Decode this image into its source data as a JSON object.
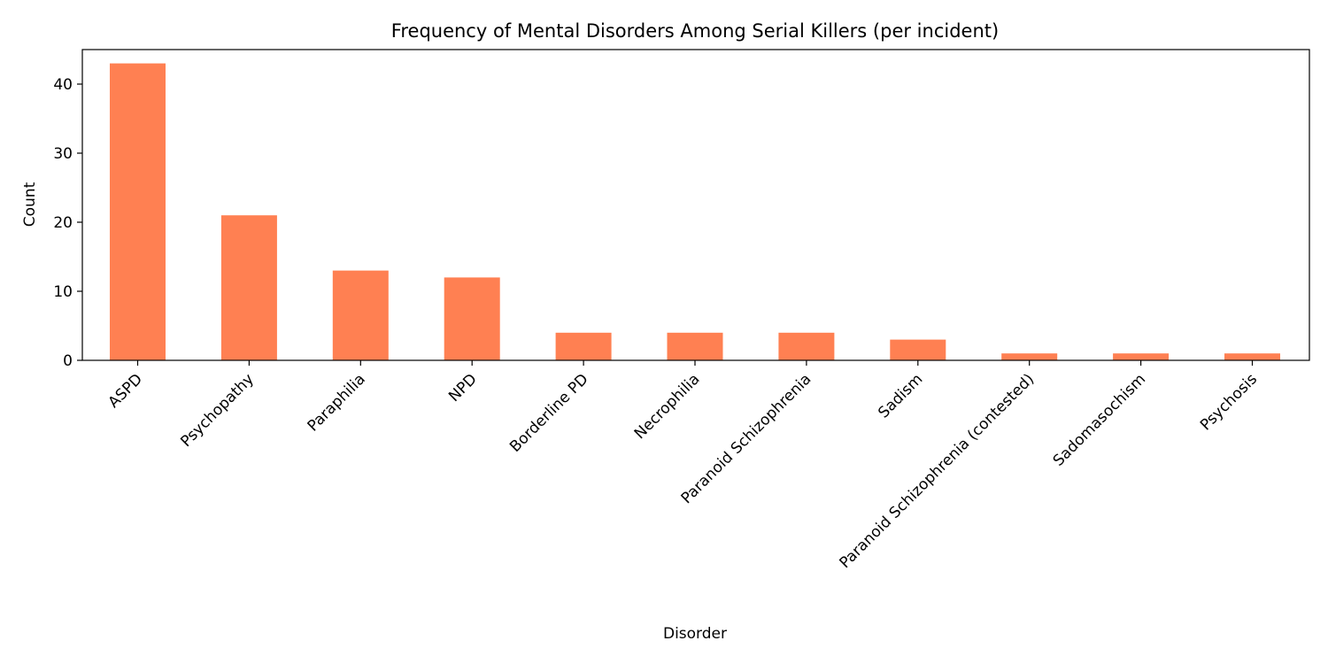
{
  "chart_data": {
    "type": "bar",
    "title": "Frequency of Mental Disorders Among Serial Killers (per incident)",
    "xlabel": "Disorder",
    "ylabel": "Count",
    "categories": [
      "ASPD",
      "Psychopathy",
      "Paraphilia",
      "NPD",
      "Borderline PD",
      "Necrophilia",
      "Paranoid Schizophrenia",
      "Sadism",
      "Paranoid Schizophrenia (contested)",
      "Sadomasochism",
      "Psychosis"
    ],
    "values": [
      43,
      21,
      13,
      12,
      4,
      4,
      4,
      3,
      1,
      1,
      1
    ],
    "ylim": [
      0,
      45
    ],
    "yticks": [
      0,
      10,
      20,
      30,
      40
    ],
    "bar_color": "#ff8052",
    "grid": false,
    "legend": "none"
  }
}
